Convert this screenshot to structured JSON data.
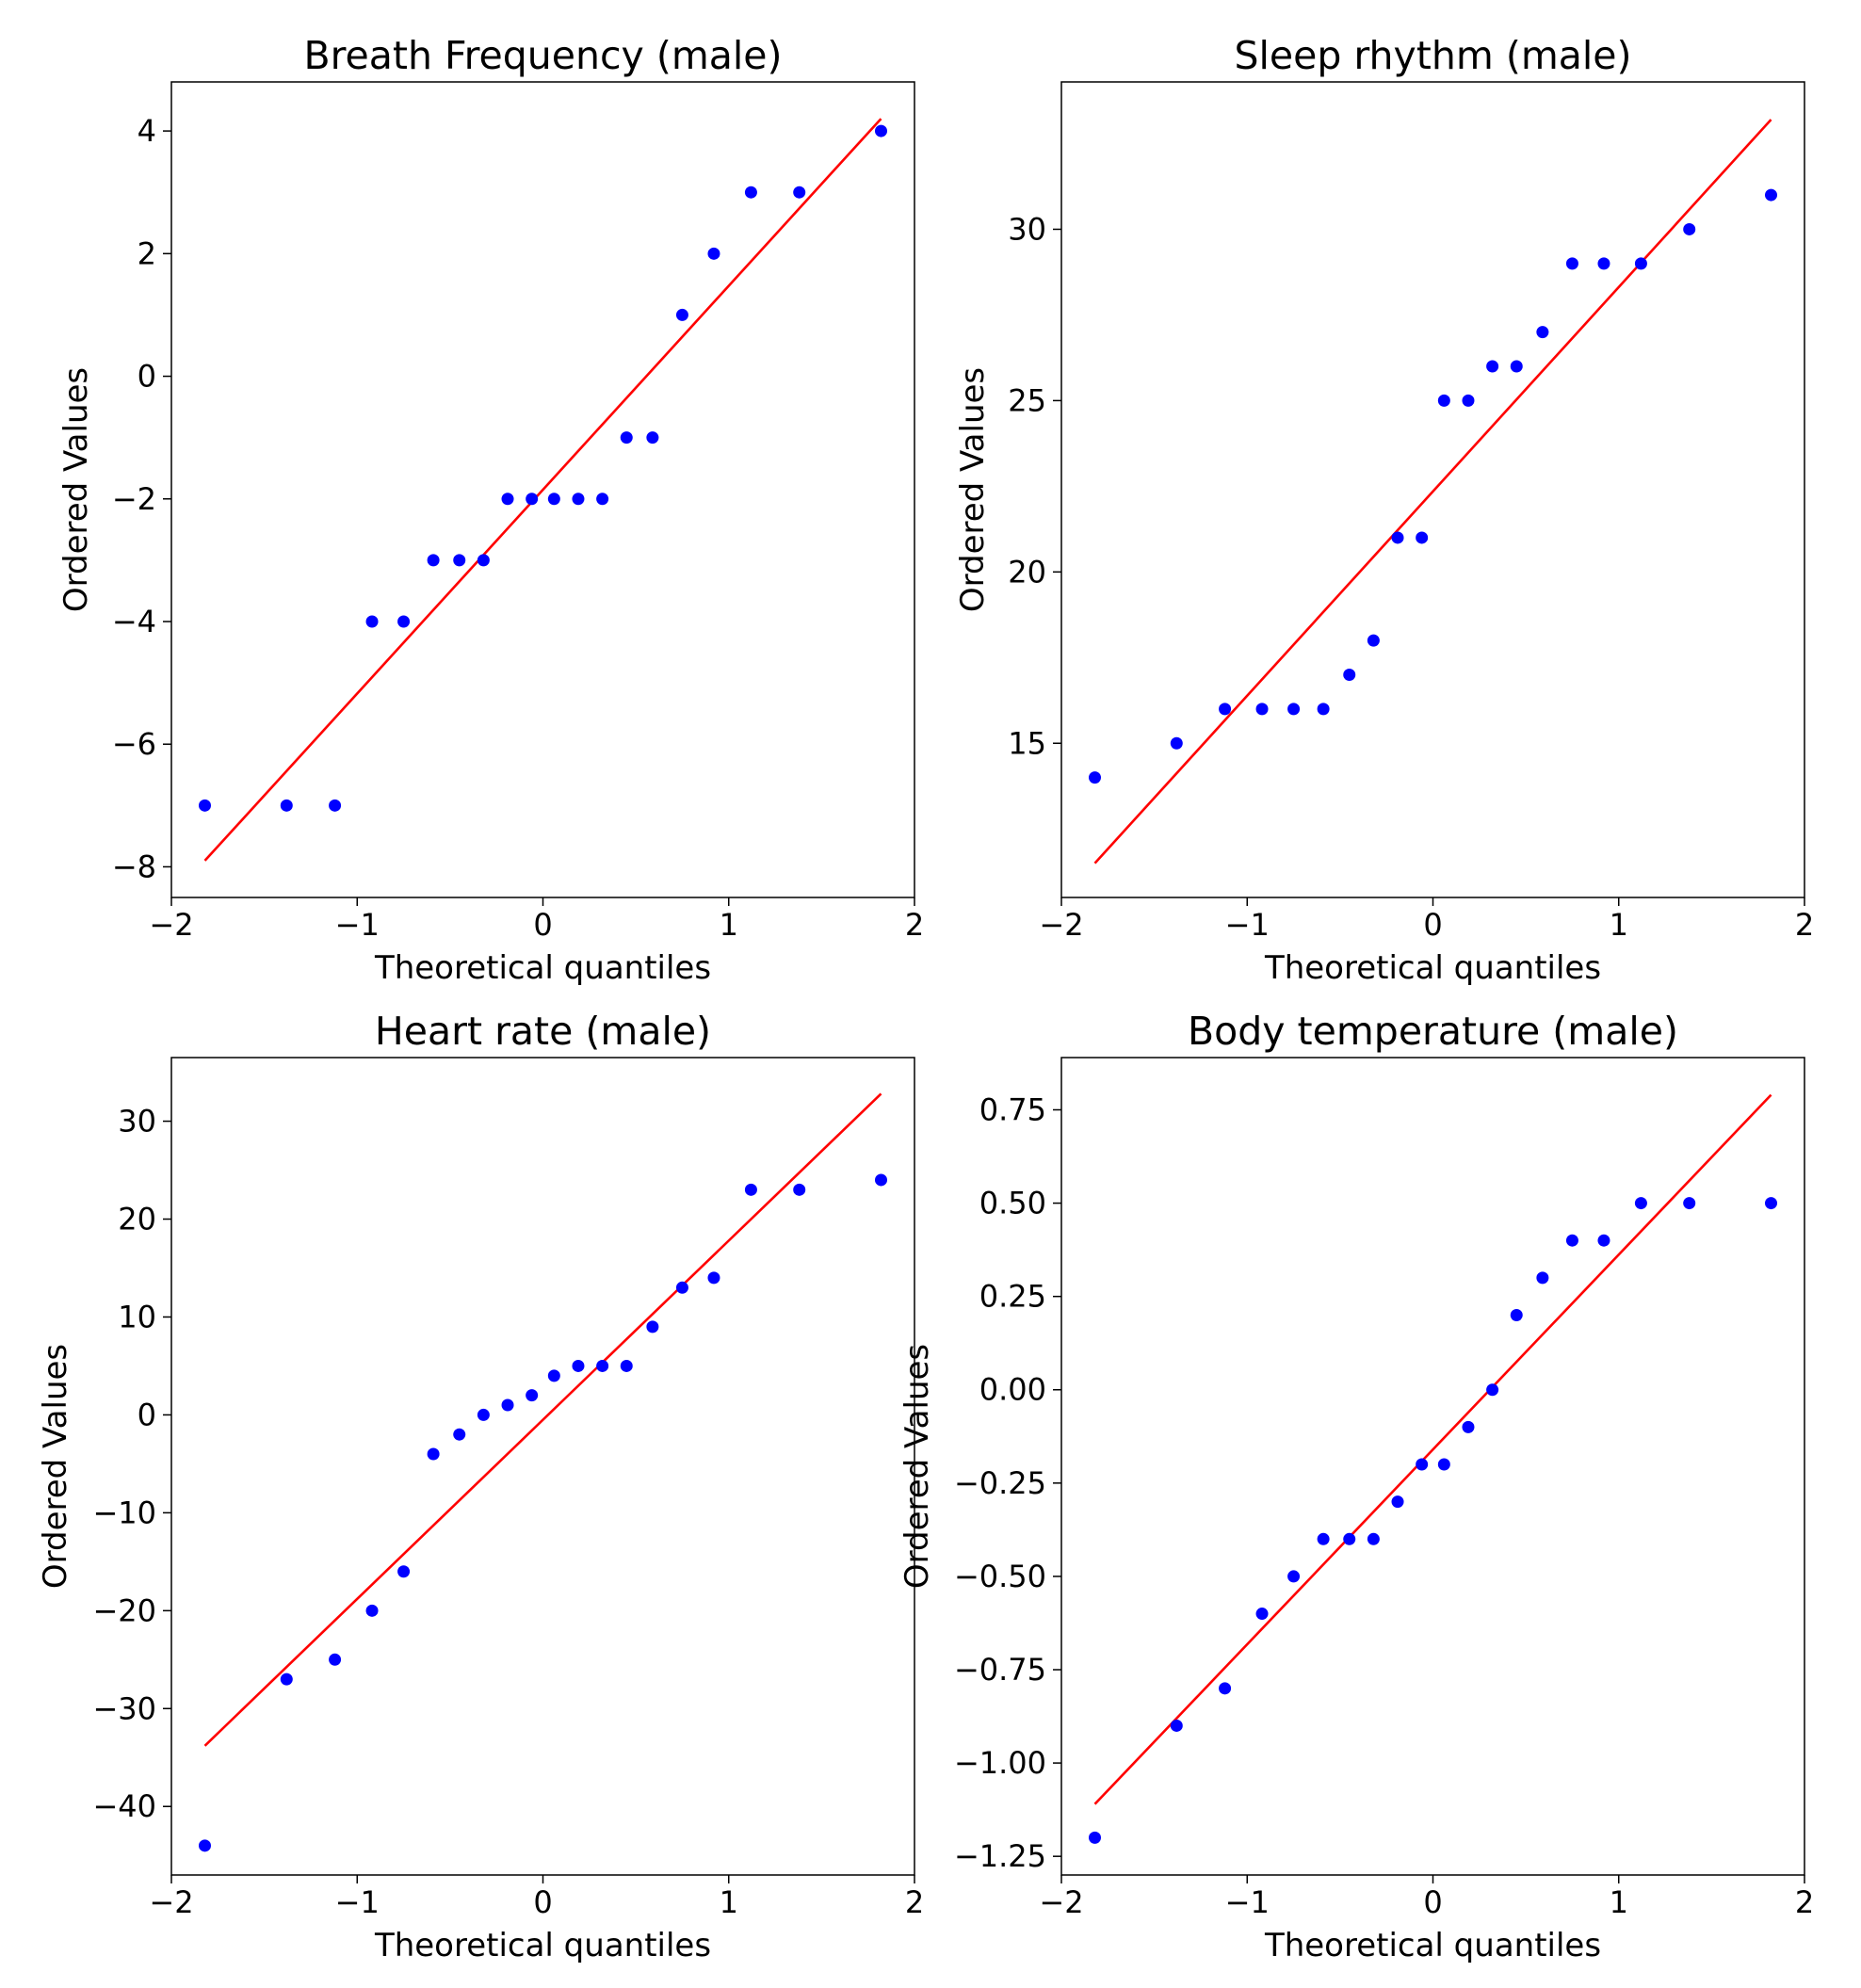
{
  "figure": {
    "colors": {
      "points": "#0000ff",
      "fit_line": "#ff0000",
      "axes": "#000000"
    }
  },
  "chart_data": [
    {
      "type": "scatter",
      "title": "Breath Frequency (male)",
      "xlabel": "Theoretical quantiles",
      "ylabel": "Ordered Values",
      "xlim": [
        -2,
        2
      ],
      "ylim": [
        -8.5,
        4.8
      ],
      "xticks": [
        -2,
        -1,
        0,
        1,
        2
      ],
      "xtick_labels": [
        "−2",
        "−1",
        "0",
        "1",
        "2"
      ],
      "yticks": [
        -8,
        -6,
        -4,
        -2,
        0,
        2,
        4
      ],
      "ytick_labels": [
        "−8",
        "−6",
        "−4",
        "−2",
        "0",
        "2",
        "4"
      ],
      "grid": false,
      "x": [
        -1.82,
        -1.38,
        -1.12,
        -0.92,
        -0.75,
        -0.59,
        -0.45,
        -0.32,
        -0.19,
        -0.06,
        0.06,
        0.19,
        0.32,
        0.45,
        0.59,
        0.75,
        0.92,
        1.12,
        1.38,
        1.82
      ],
      "y": [
        -7,
        -7,
        -7,
        -4,
        -4,
        -3,
        -3,
        -3,
        -2,
        -2,
        -2,
        -2,
        -2,
        -1,
        -1,
        1,
        2,
        3,
        3,
        4
      ],
      "fit_line": {
        "x": [
          -1.82,
          1.82
        ],
        "y": [
          -7.9,
          4.2
        ]
      }
    },
    {
      "type": "scatter",
      "title": "Sleep rhythm (male)",
      "xlabel": "Theoretical quantiles",
      "ylabel": "Ordered Values",
      "xlim": [
        -2,
        2
      ],
      "ylim": [
        10.5,
        34.3
      ],
      "xticks": [
        -2,
        -1,
        0,
        1,
        2
      ],
      "xtick_labels": [
        "−2",
        "−1",
        "0",
        "1",
        "2"
      ],
      "yticks": [
        15,
        20,
        25,
        30
      ],
      "ytick_labels": [
        "15",
        "20",
        "25",
        "30"
      ],
      "grid": false,
      "x": [
        -1.82,
        -1.38,
        -1.12,
        -0.92,
        -0.75,
        -0.59,
        -0.45,
        -0.32,
        -0.19,
        -0.06,
        0.06,
        0.19,
        0.32,
        0.45,
        0.59,
        0.75,
        0.92,
        1.12,
        1.38,
        1.82
      ],
      "y": [
        14,
        15,
        16,
        16,
        16,
        16,
        17,
        18,
        21,
        21,
        25,
        25,
        26,
        26,
        27,
        29,
        29,
        29,
        30,
        31
      ],
      "fit_line": {
        "x": [
          -1.82,
          1.82
        ],
        "y": [
          11.5,
          33.2
        ]
      }
    },
    {
      "type": "scatter",
      "title": "Heart rate (male)",
      "xlabel": "Theoretical quantiles",
      "ylabel": "Ordered Values",
      "xlim": [
        -2,
        2
      ],
      "ylim": [
        -47,
        36.5
      ],
      "xticks": [
        -2,
        -1,
        0,
        1,
        2
      ],
      "xtick_labels": [
        "−2",
        "−1",
        "0",
        "1",
        "2"
      ],
      "yticks": [
        -40,
        -30,
        -20,
        -10,
        0,
        10,
        20,
        30
      ],
      "ytick_labels": [
        "−40",
        "−30",
        "−20",
        "−10",
        "0",
        "10",
        "20",
        "30"
      ],
      "grid": false,
      "x": [
        -1.82,
        -1.38,
        -1.12,
        -0.92,
        -0.75,
        -0.59,
        -0.45,
        -0.32,
        -0.19,
        -0.06,
        0.06,
        0.19,
        0.32,
        0.45,
        0.59,
        0.75,
        0.92,
        1.12,
        1.38,
        1.82
      ],
      "y": [
        -44,
        -27,
        -25,
        -20,
        -16,
        -4,
        -2,
        0,
        1,
        2,
        4,
        5,
        5,
        5,
        9,
        13,
        14,
        23,
        23,
        24
      ],
      "fit_line": {
        "x": [
          -1.82,
          1.82
        ],
        "y": [
          -33.8,
          32.8
        ]
      }
    },
    {
      "type": "scatter",
      "title": "Body temperature (male)",
      "xlabel": "Theoretical quantiles",
      "ylabel": "Ordered Values",
      "xlim": [
        -2,
        2
      ],
      "ylim": [
        -1.3,
        0.89
      ],
      "xticks": [
        -2,
        -1,
        0,
        1,
        2
      ],
      "xtick_labels": [
        "−2",
        "−1",
        "0",
        "1",
        "2"
      ],
      "yticks": [
        -1.25,
        -1.0,
        -0.75,
        -0.5,
        -0.25,
        0.0,
        0.25,
        0.5,
        0.75
      ],
      "ytick_labels": [
        "−1.25",
        "−1.00",
        "−0.75",
        "−0.50",
        "−0.25",
        "0.00",
        "0.25",
        "0.50",
        "0.75"
      ],
      "grid": false,
      "x": [
        -1.82,
        -1.38,
        -1.12,
        -0.92,
        -0.75,
        -0.59,
        -0.45,
        -0.32,
        -0.19,
        -0.06,
        0.06,
        0.19,
        0.32,
        0.45,
        0.59,
        0.75,
        0.92,
        1.12,
        1.38,
        1.82
      ],
      "y": [
        -1.2,
        -0.9,
        -0.8,
        -0.6,
        -0.5,
        -0.4,
        -0.4,
        -0.4,
        -0.3,
        -0.2,
        -0.2,
        -0.1,
        0.0,
        0.2,
        0.3,
        0.4,
        0.4,
        0.5,
        0.5,
        0.5
      ],
      "fit_line": {
        "x": [
          -1.82,
          1.82
        ],
        "y": [
          -1.11,
          0.79
        ]
      }
    }
  ]
}
